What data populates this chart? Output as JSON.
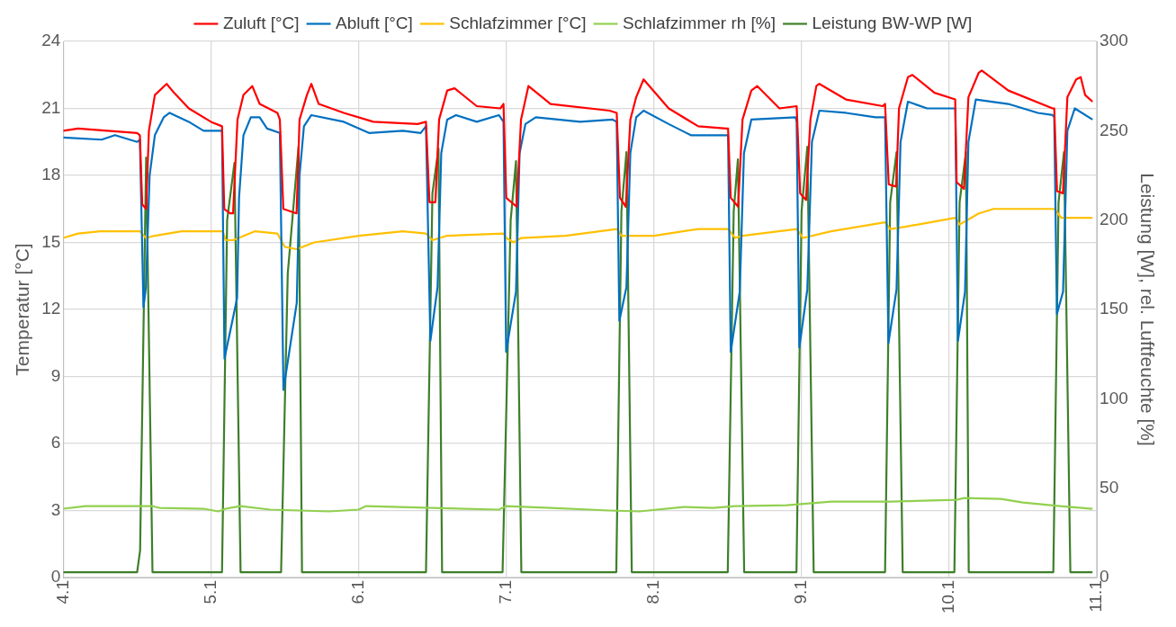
{
  "chart_data": {
    "type": "line",
    "ylabel": "Temperatur [°C]",
    "y2label": "Leistung [W], rel. Luftfeuchte [%]",
    "xlim": [
      "--01-04",
      "--01-11"
    ],
    "xticks": [
      {
        "value": "--01-04",
        "label": "4.1"
      },
      {
        "value": "--01-05",
        "label": "5.1"
      },
      {
        "value": "--01-06",
        "label": "6.1"
      },
      {
        "value": "--01-07",
        "label": "7.1"
      },
      {
        "value": "--01-08",
        "label": "8.1"
      },
      {
        "value": "--01-09",
        "label": "9.1"
      },
      {
        "value": "--01-10",
        "label": "10.1"
      },
      {
        "value": "--01-11",
        "label": "11.1"
      }
    ],
    "ylim": [
      0,
      24
    ],
    "yticks": [
      0,
      3,
      6,
      9,
      12,
      15,
      18,
      21,
      24
    ],
    "y2lim": [
      0,
      300
    ],
    "y2ticks": [
      0,
      50,
      100,
      150,
      200,
      250,
      300
    ],
    "grid": true,
    "legend": "top",
    "marker": "none",
    "line_style": "solid",
    "series": [
      {
        "name": "Zuluft [°C]",
        "color": "#ff0000",
        "x": [
          "--01-04T00:00",
          "--01-04T02:24",
          "--01-04T07:12",
          "--01-04T12:00",
          "--01-04T12:27",
          "--01-04T12:50",
          "--01-04T13:28",
          "--01-04T13:55",
          "--01-04T14:53",
          "--01-04T16:48",
          "--01-04T18:00",
          "--01-04T20:24",
          "--01-05T00:00",
          "--01-05T01:48",
          "--01-05T02:10",
          "--01-05T03:07",
          "--01-05T03:36",
          "--01-05T04:19",
          "--01-05T05:17",
          "--01-05T06:43",
          "--01-05T07:55",
          "--01-05T10:48",
          "--01-05T11:12",
          "--01-05T11:46",
          "--01-05T13:55",
          "--01-05T14:24",
          "--01-05T15:36",
          "--01-05T16:19",
          "--01-05T17:31",
          "--01-05T21:36",
          "--01-06T02:24",
          "--01-06T09:36",
          "--01-06T10:57",
          "--01-06T11:31",
          "--01-06T12:29",
          "--01-06T13:05",
          "--01-06T14:24",
          "--01-06T15:36",
          "--01-06T19:12",
          "--01-06T23:02",
          "--01-06T23:33",
          "--01-07T00:00",
          "--01-07T01:41",
          "--01-07T02:24",
          "--01-07T03:36",
          "--01-07T07:12",
          "--01-07T16:48",
          "--01-07T17:57",
          "--01-07T18:29",
          "--01-07T19:26",
          "--01-07T20:10",
          "--01-07T21:07",
          "--01-07T22:19",
          "--01-08T02:24",
          "--01-08T07:12",
          "--01-08T11:46",
          "--01-08T12:03",
          "--01-08T12:29",
          "--01-08T13:41",
          "--01-08T14:24",
          "--01-08T15:50",
          "--01-08T16:48",
          "--01-08T20:24",
          "--01-08T23:12",
          "--01-08T23:46",
          "--01-09T00:43",
          "--01-09T01:26",
          "--01-09T02:24",
          "--01-09T02:53",
          "--01-09T07:12",
          "--01-09T13:12",
          "--01-09T13:34",
          "--01-09T14:10",
          "--01-09T15:22",
          "--01-09T15:50",
          "--01-09T17:17",
          "--01-09T18:00",
          "--01-09T21:36",
          "--01-10T00:58",
          "--01-10T01:12",
          "--01-10T02:24",
          "--01-10T03:07",
          "--01-10T04:48",
          "--01-10T05:17",
          "--01-10T09:36",
          "--01-10T16:48",
          "--01-10T17:04",
          "--01-10T17:31",
          "--01-10T18:29",
          "--01-10T19:12",
          "--01-10T20:38",
          "--01-10T21:22",
          "--01-10T22:05",
          "--01-10T23:17"
        ],
        "values": [
          20,
          20.1,
          20,
          19.9,
          19.8,
          16.7,
          16.5,
          20,
          21.6,
          22.1,
          21.7,
          21,
          20.4,
          20.2,
          16.5,
          16.3,
          16.3,
          20.5,
          21.6,
          22,
          21.2,
          20.8,
          20.5,
          16.5,
          16.3,
          20.5,
          21.6,
          22.1,
          21.2,
          20.8,
          20.4,
          20.3,
          20.4,
          16.8,
          16.8,
          20.5,
          21.8,
          21.9,
          21.1,
          21,
          21.2,
          17,
          16.6,
          20.5,
          22,
          21.2,
          20.9,
          20.8,
          17,
          16.6,
          20.5,
          21.5,
          22.3,
          21,
          20.2,
          20.1,
          20.1,
          17,
          16.6,
          20.5,
          21.8,
          22,
          21,
          21.1,
          17.2,
          16.9,
          20.5,
          22,
          22.1,
          21.4,
          21.1,
          21.2,
          17.6,
          17.5,
          21,
          22.4,
          22.5,
          21.7,
          21.4,
          17.7,
          17.4,
          21.5,
          22.6,
          22.7,
          21.8,
          21.0,
          21.0,
          17.3,
          17.2,
          21.5,
          22.3,
          22.4,
          21.6,
          21.3
        ]
      },
      {
        "name": "Abluft [°C]",
        "color": "#0070c0",
        "x": [
          "--01-04T00:00",
          "--01-04T06:14",
          "--01-04T08:24",
          "--01-04T12:00",
          "--01-04T12:27",
          "--01-04T13:02",
          "--01-04T13:26",
          "--01-04T14:02",
          "--01-04T14:53",
          "--01-04T16:19",
          "--01-04T17:17",
          "--01-04T20:24",
          "--01-04T22:48",
          "--01-05T01:48",
          "--01-05T02:12",
          "--01-05T04:15",
          "--01-05T04:34",
          "--01-05T05:17",
          "--01-05T06:29",
          "--01-05T07:55",
          "--01-05T09:07",
          "--01-05T11:12",
          "--01-05T11:47",
          "--01-05T13:57",
          "--01-05T14:24",
          "--01-05T15:07",
          "--01-05T16:19",
          "--01-05T21:36",
          "--01-06T01:41",
          "--01-06T07:12",
          "--01-06T10:05",
          "--01-06T10:57",
          "--01-06T11:40",
          "--01-06T12:50",
          "--01-06T13:26",
          "--01-06T14:24",
          "--01-06T15:50",
          "--01-06T19:12",
          "--01-06T22:48",
          "--01-06T23:33",
          "--01-06T23:59",
          "--01-07T01:35",
          "--01-07T02:10",
          "--01-07T03:07",
          "--01-07T04:48",
          "--01-07T12:00",
          "--01-07T17:17",
          "--01-07T17:57",
          "--01-07T18:23",
          "--01-07T19:32",
          "--01-07T20:10",
          "--01-07T21:07",
          "--01-07T22:19",
          "--01-08T02:24",
          "--01-08T06:00",
          "--01-08T11:46",
          "--01-08T12:03",
          "--01-08T12:29",
          "--01-08T13:57",
          "--01-08T14:38",
          "--01-08T15:50",
          "--01-08T23:02",
          "--01-08T23:12",
          "--01-08T23:38",
          "--01-09T00:56",
          "--01-09T01:41",
          "--01-09T02:53",
          "--01-09T07:12",
          "--01-09T12:00",
          "--01-09T13:34",
          "--01-09T14:07",
          "--01-09T15:26",
          "--01-09T16:05",
          "--01-09T17:17",
          "--01-09T20:24",
          "--01-10T00:43",
          "--01-10T00:59",
          "--01-10T01:25",
          "--01-10T02:34",
          "--01-10T03:07",
          "--01-10T04:19",
          "--01-10T09:36",
          "--01-10T14:24",
          "--01-10T16:48",
          "--01-10T17:04",
          "--01-10T17:30",
          "--01-10T18:30",
          "--01-10T19:12",
          "--01-10T20:24",
          "--01-10T23:17"
        ],
        "values": [
          19.7,
          19.6,
          19.8,
          19.5,
          19.6,
          12.1,
          13,
          18,
          19.8,
          20.6,
          20.8,
          20.4,
          20.0,
          20.0,
          9.8,
          12.5,
          17,
          19.8,
          20.6,
          20.6,
          20.1,
          19.9,
          8.4,
          12.3,
          18,
          20.2,
          20.7,
          20.4,
          19.9,
          20,
          19.9,
          20.2,
          10.6,
          13,
          19,
          20.5,
          20.7,
          20.4,
          20.7,
          20.4,
          10.1,
          12.8,
          19,
          20.3,
          20.6,
          20.4,
          20.5,
          20.4,
          11.5,
          13,
          19,
          20.6,
          20.9,
          20.3,
          19.8,
          19.8,
          19.8,
          10.1,
          12.8,
          19,
          20.5,
          20.6,
          20.4,
          10.3,
          12.9,
          19.5,
          20.9,
          20.8,
          20.6,
          20.6,
          10.5,
          12.9,
          19.5,
          21.3,
          21.0,
          21.0,
          21.0,
          10.6,
          12.8,
          19.5,
          21.4,
          21.2,
          20.8,
          20.7,
          20.6,
          11.8,
          12.8,
          20,
          21.0,
          20.5
        ]
      },
      {
        "name": "Schlafzimmer [°C]",
        "color": "#ffc000",
        "x": [
          "--01-04T00:00",
          "--01-04T02:24",
          "--01-04T06:00",
          "--01-04T12:29",
          "--01-04T13:26",
          "--01-04T14:53",
          "--01-04T19:12",
          "--01-05T01:55",
          "--01-05T02:24",
          "--01-05T03:36",
          "--01-05T07:12",
          "--01-05T10:48",
          "--01-05T12:00",
          "--01-05T13:55",
          "--01-05T16:48",
          "--01-06T00:00",
          "--01-06T07:12",
          "--01-06T10:57",
          "--01-06T12:00",
          "--01-06T14:24",
          "--01-06T23:33",
          "--01-07T00:00",
          "--01-07T01:12",
          "--01-07T02:24",
          "--01-07T09:36",
          "--01-07T17:57",
          "--01-07T18:43",
          "--01-08T00:00",
          "--01-08T07:12",
          "--01-08T12:03",
          "--01-08T13:12",
          "--01-08T14:24",
          "--01-08T23:12",
          "--01-09T00:14",
          "--01-09T04:48",
          "--01-09T13:34",
          "--01-09T14:24",
          "--01-09T16:48",
          "--01-10T00:59",
          "--01-10T01:41",
          "--01-10T04:48",
          "--01-10T07:12",
          "--01-10T17:04",
          "--01-10T18:14",
          "--01-10T23:17"
        ],
        "values": [
          15.2,
          15.4,
          15.5,
          15.5,
          15.2,
          15.3,
          15.5,
          15.5,
          15.1,
          15.1,
          15.5,
          15.4,
          14.8,
          14.7,
          15,
          15.3,
          15.5,
          15.4,
          15.1,
          15.3,
          15.4,
          15.2,
          15,
          15.2,
          15.3,
          15.6,
          15.3,
          15.3,
          15.6,
          15.6,
          15.2,
          15.3,
          15.6,
          15.2,
          15.5,
          15.9,
          15.6,
          15.7,
          16.1,
          15.8,
          16.3,
          16.5,
          16.5,
          16.1,
          16.1
        ]
      },
      {
        "name": "Schlafzimmer rh [%]",
        "color": "#92d050",
        "axis": "y2",
        "x": [
          "--01-04T00:00",
          "--01-04T03:36",
          "--01-04T14:24",
          "--01-04T15:36",
          "--01-04T22:48",
          "--01-05T01:12",
          "--01-05T02:24",
          "--01-05T04:48",
          "--01-05T09:36",
          "--01-05T19:12",
          "--01-06T00:00",
          "--01-06T01:12",
          "--01-06T12:00",
          "--01-06T22:48",
          "--01-07T00:00",
          "--01-07T07:12",
          "--01-07T16:48",
          "--01-07T21:36",
          "--01-08T04:48",
          "--01-08T09:36",
          "--01-08T13:12",
          "--01-08T21:36",
          "--01-09T04:48",
          "--01-09T14:24",
          "--01-10T01:12",
          "--01-10T02:24",
          "--01-10T08:24",
          "--01-10T12:00",
          "--01-10T18:00",
          "--01-10T23:17"
        ],
        "values": [
          38.5,
          40,
          40,
          39,
          38.5,
          37,
          38.5,
          40,
          38,
          37,
          38,
          40,
          39,
          38,
          40,
          39,
          37.5,
          37,
          39.5,
          39,
          40,
          40.5,
          42.5,
          42.5,
          43.5,
          44.5,
          44,
          42,
          40,
          38.5
        ]
      },
      {
        "name": "Leistung BW-WP [W]",
        "color": "#3e7f2a",
        "axis": "y2",
        "x": [
          "--01-04T00:00",
          "--01-04T12:00",
          "--01-04T12:29",
          "--01-04T13:28",
          "--01-04T14:30",
          "--01-05T01:48",
          "--01-05T02:38",
          "--01-05T03:49",
          "--01-05T04:49",
          "--01-05T11:24",
          "--01-05T12:29",
          "--01-05T14:14",
          "--01-05T14:48",
          "--01-06T10:57",
          "--01-06T12:00",
          "--01-06T12:59",
          "--01-06T13:34",
          "--01-06T23:24",
          "--01-07T00:43",
          "--01-07T01:35",
          "--01-07T02:27",
          "--01-07T17:53",
          "--01-07T18:43",
          "--01-07T19:32",
          "--01-07T20:24",
          "--01-08T12:00",
          "--01-08T12:58",
          "--01-08T13:39",
          "--01-08T14:40",
          "--01-08T23:10",
          "--01-09T00:00",
          "--01-09T00:56",
          "--01-09T01:58",
          "--01-09T13:34",
          "--01-09T14:24",
          "--01-09T15:26",
          "--01-09T16:26",
          "--01-10T00:50",
          "--01-10T01:41",
          "--01-10T02:43",
          "--01-10T03:10",
          "--01-10T16:55",
          "--01-10T17:46",
          "--01-10T18:39",
          "--01-10T19:41",
          "--01-10T23:17"
        ],
        "values": [
          3,
          3,
          15,
          235,
          3,
          3,
          200,
          232,
          3,
          3,
          170,
          241,
          3,
          3,
          215,
          240,
          3,
          3,
          200,
          233,
          3,
          3,
          205,
          238,
          3,
          3,
          205,
          234,
          3,
          3,
          205,
          241,
          3,
          3,
          210,
          238,
          3,
          3,
          210,
          238,
          3,
          3,
          210,
          238,
          3,
          3
        ]
      }
    ]
  }
}
